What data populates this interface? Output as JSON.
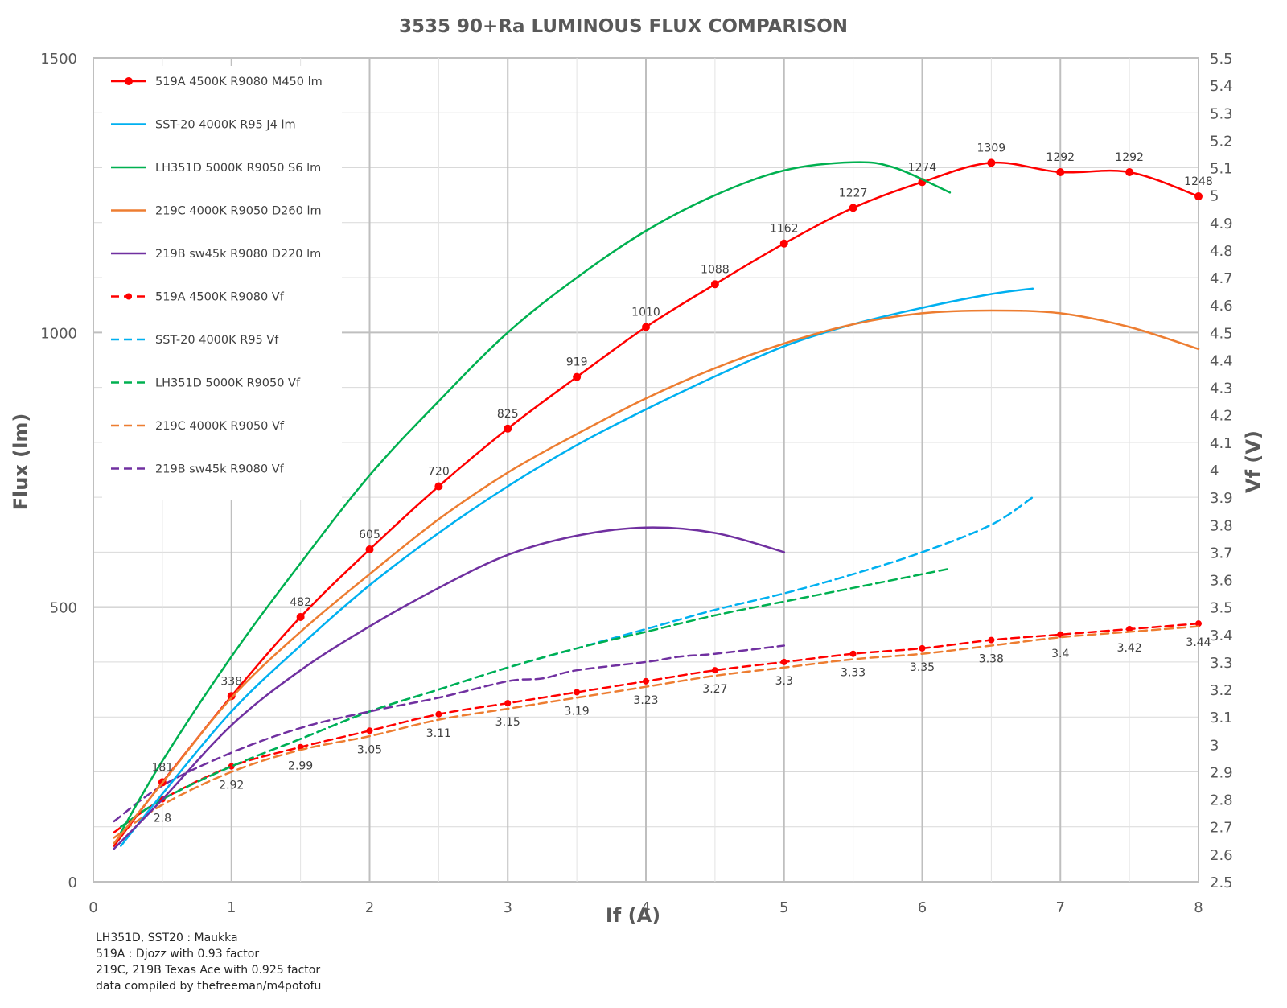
{
  "chart_data": {
    "type": "line",
    "title": "3535 90+Ra LUMINOUS FLUX COMPARISON",
    "xlabel": "If (A)",
    "ylabel": "Flux (lm)",
    "y2label": "Vf (V)",
    "xlim": [
      0,
      8
    ],
    "ylim": [
      0,
      1500
    ],
    "y2lim": [
      2.5,
      5.5
    ],
    "x_ticks": [
      "0",
      "1",
      "2",
      "3",
      "4",
      "5",
      "6",
      "7",
      "8"
    ],
    "y_ticks": [
      "0",
      "500",
      "1000",
      "1500"
    ],
    "y2_ticks": [
      "2.5",
      "2.6",
      "2.7",
      "2.8",
      "2.9",
      "3",
      "3.1",
      "3.2",
      "3.3",
      "3.4",
      "3.5",
      "3.6",
      "3.7",
      "3.8",
      "3.9",
      "4",
      "4.1",
      "4.2",
      "4.3",
      "4.4",
      "4.5",
      "4.6",
      "4.7",
      "4.8",
      "4.9",
      "5",
      "5.1",
      "5.2",
      "5.3",
      "5.4",
      "5.5"
    ],
    "grid": true,
    "legend_position": "top-left",
    "series": [
      {
        "name": "519A 4500K R9080 M450 lm",
        "axis": "left",
        "color": "#ff0000",
        "dash": false,
        "markers": true,
        "labels_position": "above",
        "x": [
          0.15,
          0.5,
          1,
          1.5,
          2,
          2.5,
          3,
          3.5,
          4,
          4.5,
          5,
          5.5,
          6,
          6.5,
          7,
          7.5,
          8
        ],
        "y": [
          65,
          181,
          338,
          482,
          605,
          720,
          825,
          919,
          1010,
          1088,
          1162,
          1227,
          1274,
          1309,
          1292,
          1292,
          1248
        ],
        "labels": [
          "",
          "181",
          "338",
          "482",
          "605",
          "720",
          "825",
          "919",
          "1010",
          "1088",
          "1162",
          "1227",
          "1274",
          "1309",
          "1292",
          "1292",
          "1248"
        ]
      },
      {
        "name": "SST-20 4000K R95 J4 lm",
        "axis": "left",
        "color": "#00b0f0",
        "dash": false,
        "markers": false,
        "x": [
          0.2,
          0.5,
          1,
          1.5,
          2,
          2.5,
          3,
          3.5,
          4,
          4.5,
          5,
          5.5,
          6,
          6.5,
          6.8
        ],
        "y": [
          65,
          160,
          310,
          430,
          540,
          635,
          720,
          795,
          860,
          920,
          975,
          1015,
          1045,
          1070,
          1080
        ]
      },
      {
        "name": "LH351D 5000K R9050 S6 lm",
        "axis": "left",
        "color": "#00b050",
        "dash": false,
        "markers": false,
        "x": [
          0.2,
          0.5,
          1,
          1.5,
          2,
          2.5,
          3,
          3.5,
          4,
          4.5,
          5,
          5.5,
          5.8,
          6.2
        ],
        "y": [
          90,
          220,
          410,
          580,
          740,
          875,
          1000,
          1100,
          1185,
          1250,
          1295,
          1310,
          1300,
          1255
        ]
      },
      {
        "name": "219C 4000K R9050 D260 lm",
        "axis": "left",
        "color": "#ed7d31",
        "dash": false,
        "markers": false,
        "x": [
          0.15,
          0.5,
          1,
          1.5,
          2,
          2.5,
          3,
          3.5,
          4,
          4.5,
          5,
          5.5,
          6,
          6.5,
          7,
          7.5,
          8
        ],
        "y": [
          70,
          180,
          335,
          455,
          560,
          660,
          745,
          815,
          880,
          935,
          980,
          1015,
          1035,
          1040,
          1035,
          1010,
          970
        ]
      },
      {
        "name": "219B sw45k R9080 D220 lm",
        "axis": "left",
        "color": "#7030a0",
        "dash": false,
        "markers": false,
        "x": [
          0.15,
          0.5,
          1,
          1.5,
          2,
          2.5,
          3,
          3.5,
          4,
          4.5,
          5
        ],
        "y": [
          60,
          150,
          285,
          385,
          465,
          535,
          595,
          630,
          645,
          635,
          600
        ]
      },
      {
        "name": "519A 4500K R9080 Vf",
        "axis": "right",
        "color": "#ff0000",
        "dash": true,
        "markers": true,
        "labels_position": "below",
        "x": [
          0.15,
          0.5,
          1,
          1.5,
          2,
          2.5,
          3,
          3.5,
          4,
          4.5,
          5,
          5.5,
          6,
          6.5,
          7,
          7.5,
          8
        ],
        "y": [
          2.68,
          2.8,
          2.92,
          2.99,
          3.05,
          3.11,
          3.15,
          3.19,
          3.23,
          3.27,
          3.3,
          3.33,
          3.35,
          3.38,
          3.4,
          3.42,
          3.44
        ],
        "labels": [
          "",
          "2.8",
          "2.92",
          "2.99",
          "3.05",
          "3.11",
          "3.15",
          "3.19",
          "3.23",
          "3.27",
          "3.3",
          "3.33",
          "3.35",
          "3.38",
          "3.4",
          "3.42",
          "3.44"
        ]
      },
      {
        "name": "SST-20 4000K R95 Vf",
        "axis": "right",
        "color": "#00b0f0",
        "dash": true,
        "markers": false,
        "x": [
          0.2,
          0.5,
          1,
          1.5,
          2,
          2.5,
          3,
          3.5,
          4,
          4.5,
          5,
          5.5,
          6,
          6.5,
          6.8
        ],
        "y": [
          2.7,
          2.8,
          2.92,
          3.02,
          3.12,
          3.2,
          3.28,
          3.35,
          3.42,
          3.49,
          3.55,
          3.62,
          3.7,
          3.8,
          3.9
        ]
      },
      {
        "name": "LH351D 5000K R9050 Vf",
        "axis": "right",
        "color": "#00b050",
        "dash": true,
        "markers": false,
        "x": [
          0.2,
          0.5,
          1,
          1.5,
          2,
          2.5,
          3,
          3.5,
          4,
          4.5,
          5,
          5.5,
          6,
          6.2
        ],
        "y": [
          2.7,
          2.8,
          2.92,
          3.02,
          3.12,
          3.2,
          3.28,
          3.35,
          3.41,
          3.47,
          3.52,
          3.57,
          3.62,
          3.64
        ]
      },
      {
        "name": "219C 4000K R9050 Vf",
        "axis": "right",
        "color": "#ed7d31",
        "dash": true,
        "markers": false,
        "x": [
          0.15,
          0.5,
          1,
          1.5,
          2,
          2.5,
          3,
          3.5,
          4,
          4.5,
          5,
          5.5,
          6,
          6.5,
          7,
          7.5,
          8
        ],
        "y": [
          2.66,
          2.78,
          2.9,
          2.98,
          3.03,
          3.09,
          3.13,
          3.17,
          3.21,
          3.25,
          3.28,
          3.31,
          3.33,
          3.36,
          3.39,
          3.41,
          3.43
        ]
      },
      {
        "name": "219B sw45k R9080 Vf",
        "axis": "right",
        "color": "#7030a0",
        "dash": true,
        "markers": false,
        "x": [
          0.15,
          0.5,
          1,
          1.5,
          2,
          2.5,
          3,
          3.25,
          3.5,
          4,
          4.25,
          4.5,
          5
        ],
        "y": [
          2.72,
          2.85,
          2.97,
          3.06,
          3.12,
          3.17,
          3.23,
          3.24,
          3.27,
          3.3,
          3.32,
          3.33,
          3.36
        ]
      }
    ]
  },
  "notes": [
    "LH351D, SST20 : Maukka",
    "519A : Djozz with 0.93 factor",
    "219C, 219B Texas Ace with 0.925 factor",
    "data compiled by thefreeman/m4potofu"
  ]
}
